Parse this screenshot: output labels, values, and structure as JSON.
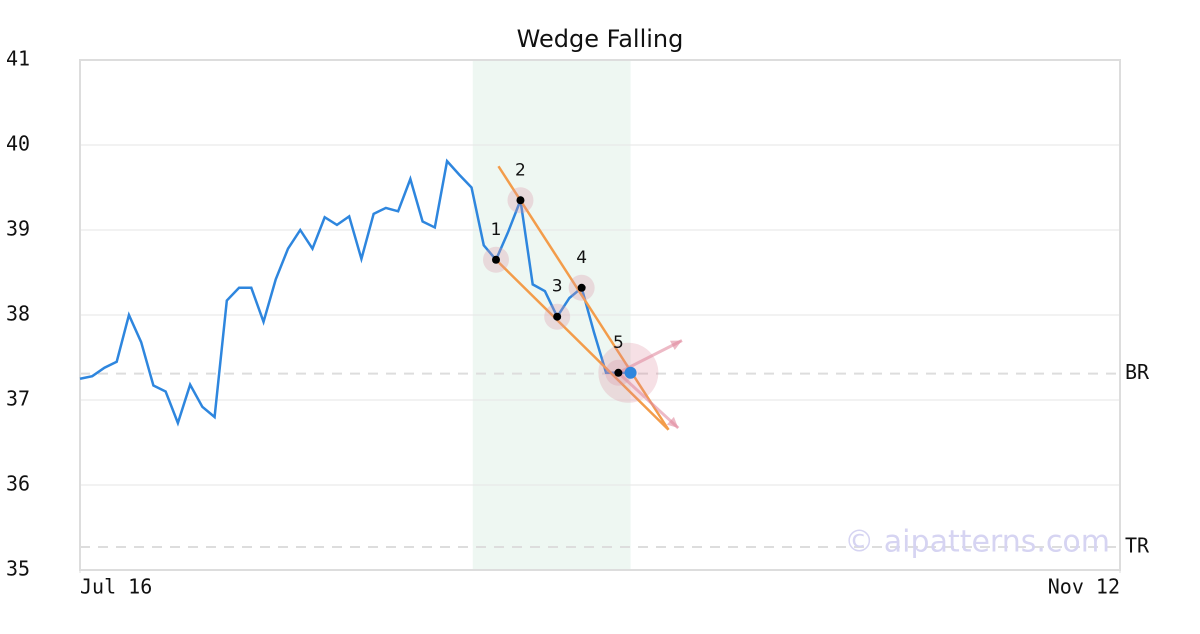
{
  "chart_data": {
    "type": "line",
    "title": "Wedge Falling",
    "x": [
      0,
      1,
      2,
      3,
      4,
      5,
      6,
      7,
      8,
      9,
      10,
      11,
      12,
      13,
      14,
      15,
      16,
      17,
      18,
      19,
      20,
      21,
      22,
      23,
      24,
      25,
      26,
      27,
      28,
      29,
      30,
      31,
      32,
      33,
      34,
      35,
      36,
      37,
      38,
      39,
      40,
      41,
      42,
      43,
      44,
      45
    ],
    "series": [
      {
        "color": "#2e86de",
        "values": [
          37.25,
          37.28,
          37.38,
          37.45,
          38.0,
          37.68,
          37.17,
          37.1,
          36.73,
          37.18,
          36.92,
          36.8,
          38.17,
          38.32,
          38.32,
          37.92,
          38.42,
          38.78,
          39.0,
          38.78,
          39.15,
          39.06,
          39.16,
          38.66,
          39.19,
          39.26,
          39.22,
          39.6,
          39.1,
          39.03,
          39.81,
          39.65,
          39.5,
          38.82,
          38.65,
          38.98,
          39.35,
          38.36,
          38.28,
          37.98,
          38.2,
          38.32,
          37.8,
          37.32,
          37.32,
          37.32
        ]
      }
    ],
    "xlim": [
      0,
      85
    ],
    "xticks": [
      {
        "value": 0,
        "label": "Jul 16"
      },
      {
        "value": 85,
        "label": "Nov 12"
      }
    ],
    "ylim": [
      35,
      41
    ],
    "yticks": [
      35,
      36,
      37,
      38,
      39,
      40,
      41
    ],
    "grid": true,
    "highlight_range": [
      32.1,
      45
    ],
    "pattern_points": [
      {
        "label": "1",
        "x": 34,
        "y": 38.65
      },
      {
        "label": "2",
        "x": 36,
        "y": 39.35
      },
      {
        "label": "3",
        "x": 39,
        "y": 37.98
      },
      {
        "label": "4",
        "x": 41,
        "y": 38.32
      },
      {
        "label": "5",
        "x": 44,
        "y": 37.32
      }
    ],
    "last_point": {
      "x": 45,
      "y": 37.32
    },
    "trendlines": [
      {
        "x": [
          34.2,
          48.1
        ],
        "y": [
          39.75,
          36.65
        ],
        "color": "#f39c4a"
      },
      {
        "x": [
          34,
          48.1
        ],
        "y": [
          38.65,
          36.65
        ],
        "color": "#f39c4a"
      }
    ],
    "arrows": [
      {
        "x": [
          44,
          49.2
        ],
        "y": [
          37.32,
          37.7
        ]
      },
      {
        "x": [
          44,
          48.9
        ],
        "y": [
          37.32,
          36.67
        ]
      }
    ],
    "levels": [
      {
        "label": "BR",
        "value": 37.31
      },
      {
        "label": "TR",
        "value": 35.27
      }
    ],
    "watermark": "© aipatterns.com"
  }
}
